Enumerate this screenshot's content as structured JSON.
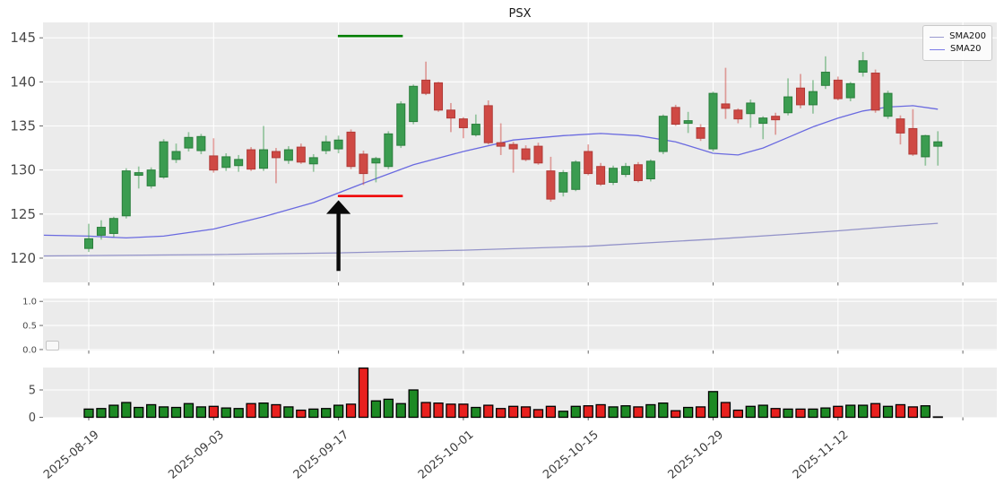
{
  "chart_data": {
    "type": "candlestick",
    "title": "PSX",
    "legend": {
      "items": [
        {
          "label": "SMA200",
          "color": "#9a9ad0"
        },
        {
          "label": "SMA20",
          "color": "#7b7be8"
        }
      ]
    },
    "x_ticks": {
      "indices": [
        0,
        10,
        20,
        30,
        40,
        50,
        60
      ],
      "labels": [
        "2025-08-19",
        "2025-09-03",
        "2025-09-17",
        "2025-10-01",
        "2025-10-15",
        "2025-10-29",
        "2025-11-12"
      ],
      "extra_grid_indices": [
        70
      ]
    },
    "panels": {
      "price": {
        "yticks": [
          120,
          125,
          130,
          135,
          140,
          145
        ],
        "ylim": [
          117.25,
          146.75
        ]
      },
      "indicator": {
        "yticks": [
          0,
          0.5,
          1
        ],
        "ytick_labels": [
          "0.0",
          "0.5",
          "1.0"
        ],
        "ylim": [
          -0.02,
          1.06
        ],
        "empty": true
      },
      "volume": {
        "yticks": [
          0,
          5
        ],
        "ytick_labels": [
          "0",
          "5"
        ],
        "grid_yticks": [
          5
        ],
        "ylim": [
          0,
          9.1
        ]
      }
    },
    "candles": [
      [
        121.1,
        123.9,
        120.7,
        122.2,
        1.5
      ],
      [
        122.6,
        124.3,
        122.1,
        123.5,
        1.6
      ],
      [
        122.8,
        124.7,
        122.4,
        124.5,
        2.2
      ],
      [
        124.8,
        130.2,
        124.5,
        129.9,
        2.7
      ],
      [
        129.4,
        130.4,
        127.9,
        129.7,
        1.8
      ],
      [
        128.2,
        130.3,
        127.9,
        130.0,
        2.3
      ],
      [
        129.2,
        133.5,
        129.0,
        133.2,
        1.9
      ],
      [
        131.2,
        133.0,
        130.8,
        132.1,
        1.8
      ],
      [
        132.5,
        134.3,
        132.1,
        133.7,
        2.5
      ],
      [
        132.2,
        134.1,
        131.8,
        133.8,
        1.9
      ],
      [
        131.6,
        133.6,
        129.7,
        130.0,
        2.0
      ],
      [
        130.3,
        131.9,
        129.9,
        131.5,
        1.7
      ],
      [
        130.5,
        131.7,
        129.8,
        131.2,
        1.6
      ],
      [
        132.3,
        132.6,
        129.9,
        130.1,
        2.5
      ],
      [
        130.2,
        135.0,
        129.9,
        132.3,
        2.6
      ],
      [
        132.1,
        132.5,
        128.5,
        131.4,
        2.3
      ],
      [
        131.1,
        132.7,
        130.7,
        132.3,
        1.9
      ],
      [
        132.6,
        133.0,
        130.7,
        130.9,
        1.3
      ],
      [
        130.7,
        131.8,
        129.8,
        131.4,
        1.5
      ],
      [
        132.2,
        133.9,
        131.8,
        133.2,
        1.6
      ],
      [
        132.4,
        133.9,
        131.9,
        133.4,
        2.2
      ],
      [
        134.3,
        134.6,
        130.1,
        130.4,
        2.4
      ],
      [
        131.8,
        132.2,
        128.3,
        129.6,
        9.0
      ],
      [
        130.8,
        131.5,
        128.6,
        131.3,
        3.0
      ],
      [
        130.4,
        134.4,
        130.1,
        134.1,
        3.3
      ],
      [
        132.8,
        137.8,
        132.5,
        137.5,
        2.5
      ],
      [
        135.5,
        139.7,
        135.2,
        139.5,
        5.0
      ],
      [
        140.2,
        142.3,
        138.5,
        138.7,
        2.7
      ],
      [
        139.9,
        140.0,
        136.6,
        136.8,
        2.6
      ],
      [
        136.8,
        137.6,
        134.3,
        135.9,
        2.4
      ],
      [
        135.8,
        136.0,
        133.6,
        134.8,
        2.4
      ],
      [
        134.0,
        136.3,
        133.8,
        135.2,
        1.8
      ],
      [
        137.3,
        137.9,
        132.9,
        133.1,
        2.2
      ],
      [
        133.1,
        135.3,
        131.7,
        132.7,
        1.6
      ],
      [
        132.9,
        133.2,
        129.7,
        132.4,
        2.0
      ],
      [
        132.4,
        132.8,
        131.0,
        131.2,
        1.9
      ],
      [
        132.7,
        133.1,
        130.6,
        130.8,
        1.4
      ],
      [
        129.9,
        131.5,
        126.4,
        126.7,
        2.0
      ],
      [
        127.5,
        130.0,
        127.0,
        129.7,
        1.1
      ],
      [
        127.8,
        131.1,
        127.6,
        130.9,
        2.0
      ],
      [
        132.1,
        132.9,
        129.4,
        129.6,
        2.1
      ],
      [
        130.4,
        130.8,
        128.2,
        128.4,
        2.3
      ],
      [
        128.6,
        130.5,
        128.3,
        130.2,
        1.9
      ],
      [
        129.5,
        130.8,
        129.2,
        130.4,
        2.1
      ],
      [
        130.6,
        130.9,
        128.6,
        128.8,
        1.9
      ],
      [
        129.0,
        131.2,
        128.7,
        131.0,
        2.3
      ],
      [
        132.1,
        136.3,
        131.8,
        136.1,
        2.6
      ],
      [
        137.1,
        137.4,
        135.0,
        135.2,
        1.2
      ],
      [
        135.3,
        136.6,
        134.2,
        135.6,
        1.8
      ],
      [
        134.8,
        135.2,
        133.3,
        133.6,
        1.9
      ],
      [
        132.4,
        138.9,
        132.1,
        138.7,
        4.7
      ],
      [
        137.5,
        141.6,
        135.8,
        137.0,
        2.7
      ],
      [
        136.8,
        137.0,
        135.3,
        135.8,
        1.3
      ],
      [
        136.4,
        138.0,
        134.8,
        137.6,
        2.0
      ],
      [
        135.3,
        136.1,
        133.5,
        135.9,
        2.2
      ],
      [
        136.1,
        136.5,
        134.0,
        135.7,
        1.6
      ],
      [
        136.5,
        140.4,
        136.2,
        138.3,
        1.5
      ],
      [
        139.3,
        140.9,
        137.0,
        137.4,
        1.5
      ],
      [
        137.4,
        140.2,
        136.4,
        138.9,
        1.5
      ],
      [
        139.6,
        142.9,
        139.2,
        141.1,
        1.7
      ],
      [
        140.2,
        140.6,
        137.9,
        138.1,
        2.0
      ],
      [
        138.2,
        140.0,
        137.8,
        139.8,
        2.2
      ],
      [
        141.1,
        143.4,
        140.6,
        142.4,
        2.2
      ],
      [
        141.0,
        141.4,
        136.5,
        136.8,
        2.5
      ],
      [
        136.1,
        139.0,
        135.8,
        138.7,
        2.0
      ],
      [
        135.8,
        136.2,
        132.9,
        134.2,
        2.3
      ],
      [
        134.7,
        136.9,
        131.6,
        131.8,
        1.9
      ],
      [
        131.5,
        134.0,
        130.5,
        133.9,
        2.1
      ],
      [
        132.7,
        134.4,
        130.5,
        133.2,
        0.07
      ]
    ],
    "series": {
      "sma20": {
        "label": "SMA20",
        "color": "#6a6ae0",
        "points": [
          [
            -3.6,
            122.6
          ],
          [
            0,
            122.5
          ],
          [
            3,
            122.3
          ],
          [
            6,
            122.5
          ],
          [
            10,
            123.3
          ],
          [
            14,
            124.7
          ],
          [
            18,
            126.3
          ],
          [
            22,
            128.5
          ],
          [
            26,
            130.6
          ],
          [
            30,
            132.1
          ],
          [
            34,
            133.4
          ],
          [
            38,
            133.9
          ],
          [
            41,
            134.15
          ],
          [
            44,
            133.9
          ],
          [
            47,
            133.2
          ],
          [
            50,
            131.9
          ],
          [
            52,
            131.7
          ],
          [
            54,
            132.5
          ],
          [
            56,
            133.7
          ],
          [
            58,
            134.9
          ],
          [
            60,
            135.9
          ],
          [
            62,
            136.7
          ],
          [
            64,
            137.15
          ],
          [
            66,
            137.3
          ],
          [
            68,
            136.9
          ]
        ]
      },
      "sma200": {
        "label": "SMA200",
        "color": "#9393c9",
        "points": [
          [
            -3.6,
            120.25
          ],
          [
            10,
            120.4
          ],
          [
            20,
            120.6
          ],
          [
            30,
            120.9
          ],
          [
            40,
            121.35
          ],
          [
            50,
            122.15
          ],
          [
            56,
            122.7
          ],
          [
            60,
            123.1
          ],
          [
            64,
            123.55
          ],
          [
            68,
            123.95
          ]
        ]
      }
    },
    "annotations": {
      "hline_green": {
        "value": 145.2,
        "from_index": 19.95,
        "to_index": 25.15,
        "color": "#007d00"
      },
      "hline_red": {
        "value": 127.05,
        "from_index": 19.95,
        "to_index": 25.15,
        "color": "#f00000"
      },
      "arrow_up": {
        "index": 20,
        "tip_value": 126.5,
        "tail_value": 118.6,
        "color": "#0a0a0a"
      }
    },
    "style": {
      "up_fill": "#3b9c50",
      "up_edge": "#2a7e3c",
      "up_wick": "rgba(59,156,80,0.5)",
      "down_fill": "#cf4944",
      "down_edge": "#b03a37",
      "down_wick": "rgba(207,73,68,0.5)",
      "vol_up": "#1d8a24",
      "vol_down": "#e8201e",
      "vol_edge": "#000000",
      "panel_bg": "#ebebeb",
      "grid": "#ffffff",
      "tick_label": "#4a4a4a",
      "figure_bg": "#ffffff"
    }
  }
}
